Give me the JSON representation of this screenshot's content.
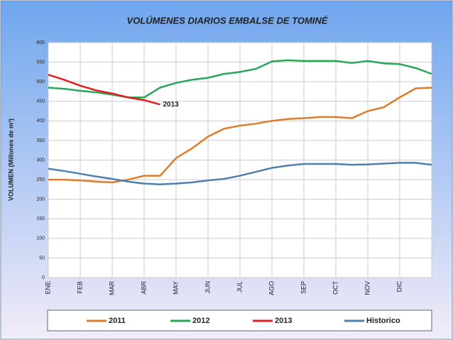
{
  "chart_data": {
    "type": "line",
    "title": "VOLÚMENES DIARIOS EMBALSE DE TOMINÉ",
    "y_label": "VOLUMEN (Millones de m³)",
    "annotation": "2013",
    "categories": [
      "ENE",
      null,
      "FEB",
      null,
      "MAR",
      null,
      "ABR",
      null,
      "MAY",
      null,
      "JUN",
      null,
      "JUL",
      null,
      "AGO",
      null,
      "SEP",
      null,
      "OCT",
      null,
      "NOV",
      null,
      "DIC",
      null,
      null
    ],
    "series": [
      {
        "name": "2011",
        "color": "#e07b2a",
        "values": [
          250,
          250,
          248,
          245,
          243,
          250,
          260,
          260,
          305,
          330,
          360,
          380,
          388,
          393,
          400,
          405,
          407,
          410,
          410,
          407,
          425,
          435,
          460,
          483,
          485
        ]
      },
      {
        "name": "2012",
        "color": "#2aa65a",
        "values": [
          485,
          482,
          477,
          473,
          467,
          460,
          460,
          485,
          497,
          505,
          510,
          520,
          525,
          533,
          552,
          555,
          553,
          553,
          553,
          548,
          553,
          547,
          545,
          535,
          520
        ]
      },
      {
        "name": "2013",
        "color": "#e02020",
        "values": [
          518,
          505,
          490,
          478,
          470,
          460,
          453,
          442,
          null,
          null,
          null,
          null,
          null,
          null,
          null,
          null,
          null,
          null,
          null,
          null,
          null,
          null,
          null,
          null,
          null
        ]
      },
      {
        "name": "Historico",
        "color": "#4f7fae",
        "values": [
          278,
          272,
          265,
          258,
          252,
          245,
          240,
          238,
          240,
          243,
          248,
          252,
          260,
          270,
          280,
          286,
          290,
          290,
          290,
          288,
          289,
          291,
          293,
          293,
          288
        ]
      }
    ],
    "ylim": [
      0,
      600
    ],
    "yticks": [
      0,
      50,
      100,
      150,
      200,
      250,
      300,
      350,
      400,
      450,
      500,
      550,
      600
    ],
    "grid": true
  }
}
